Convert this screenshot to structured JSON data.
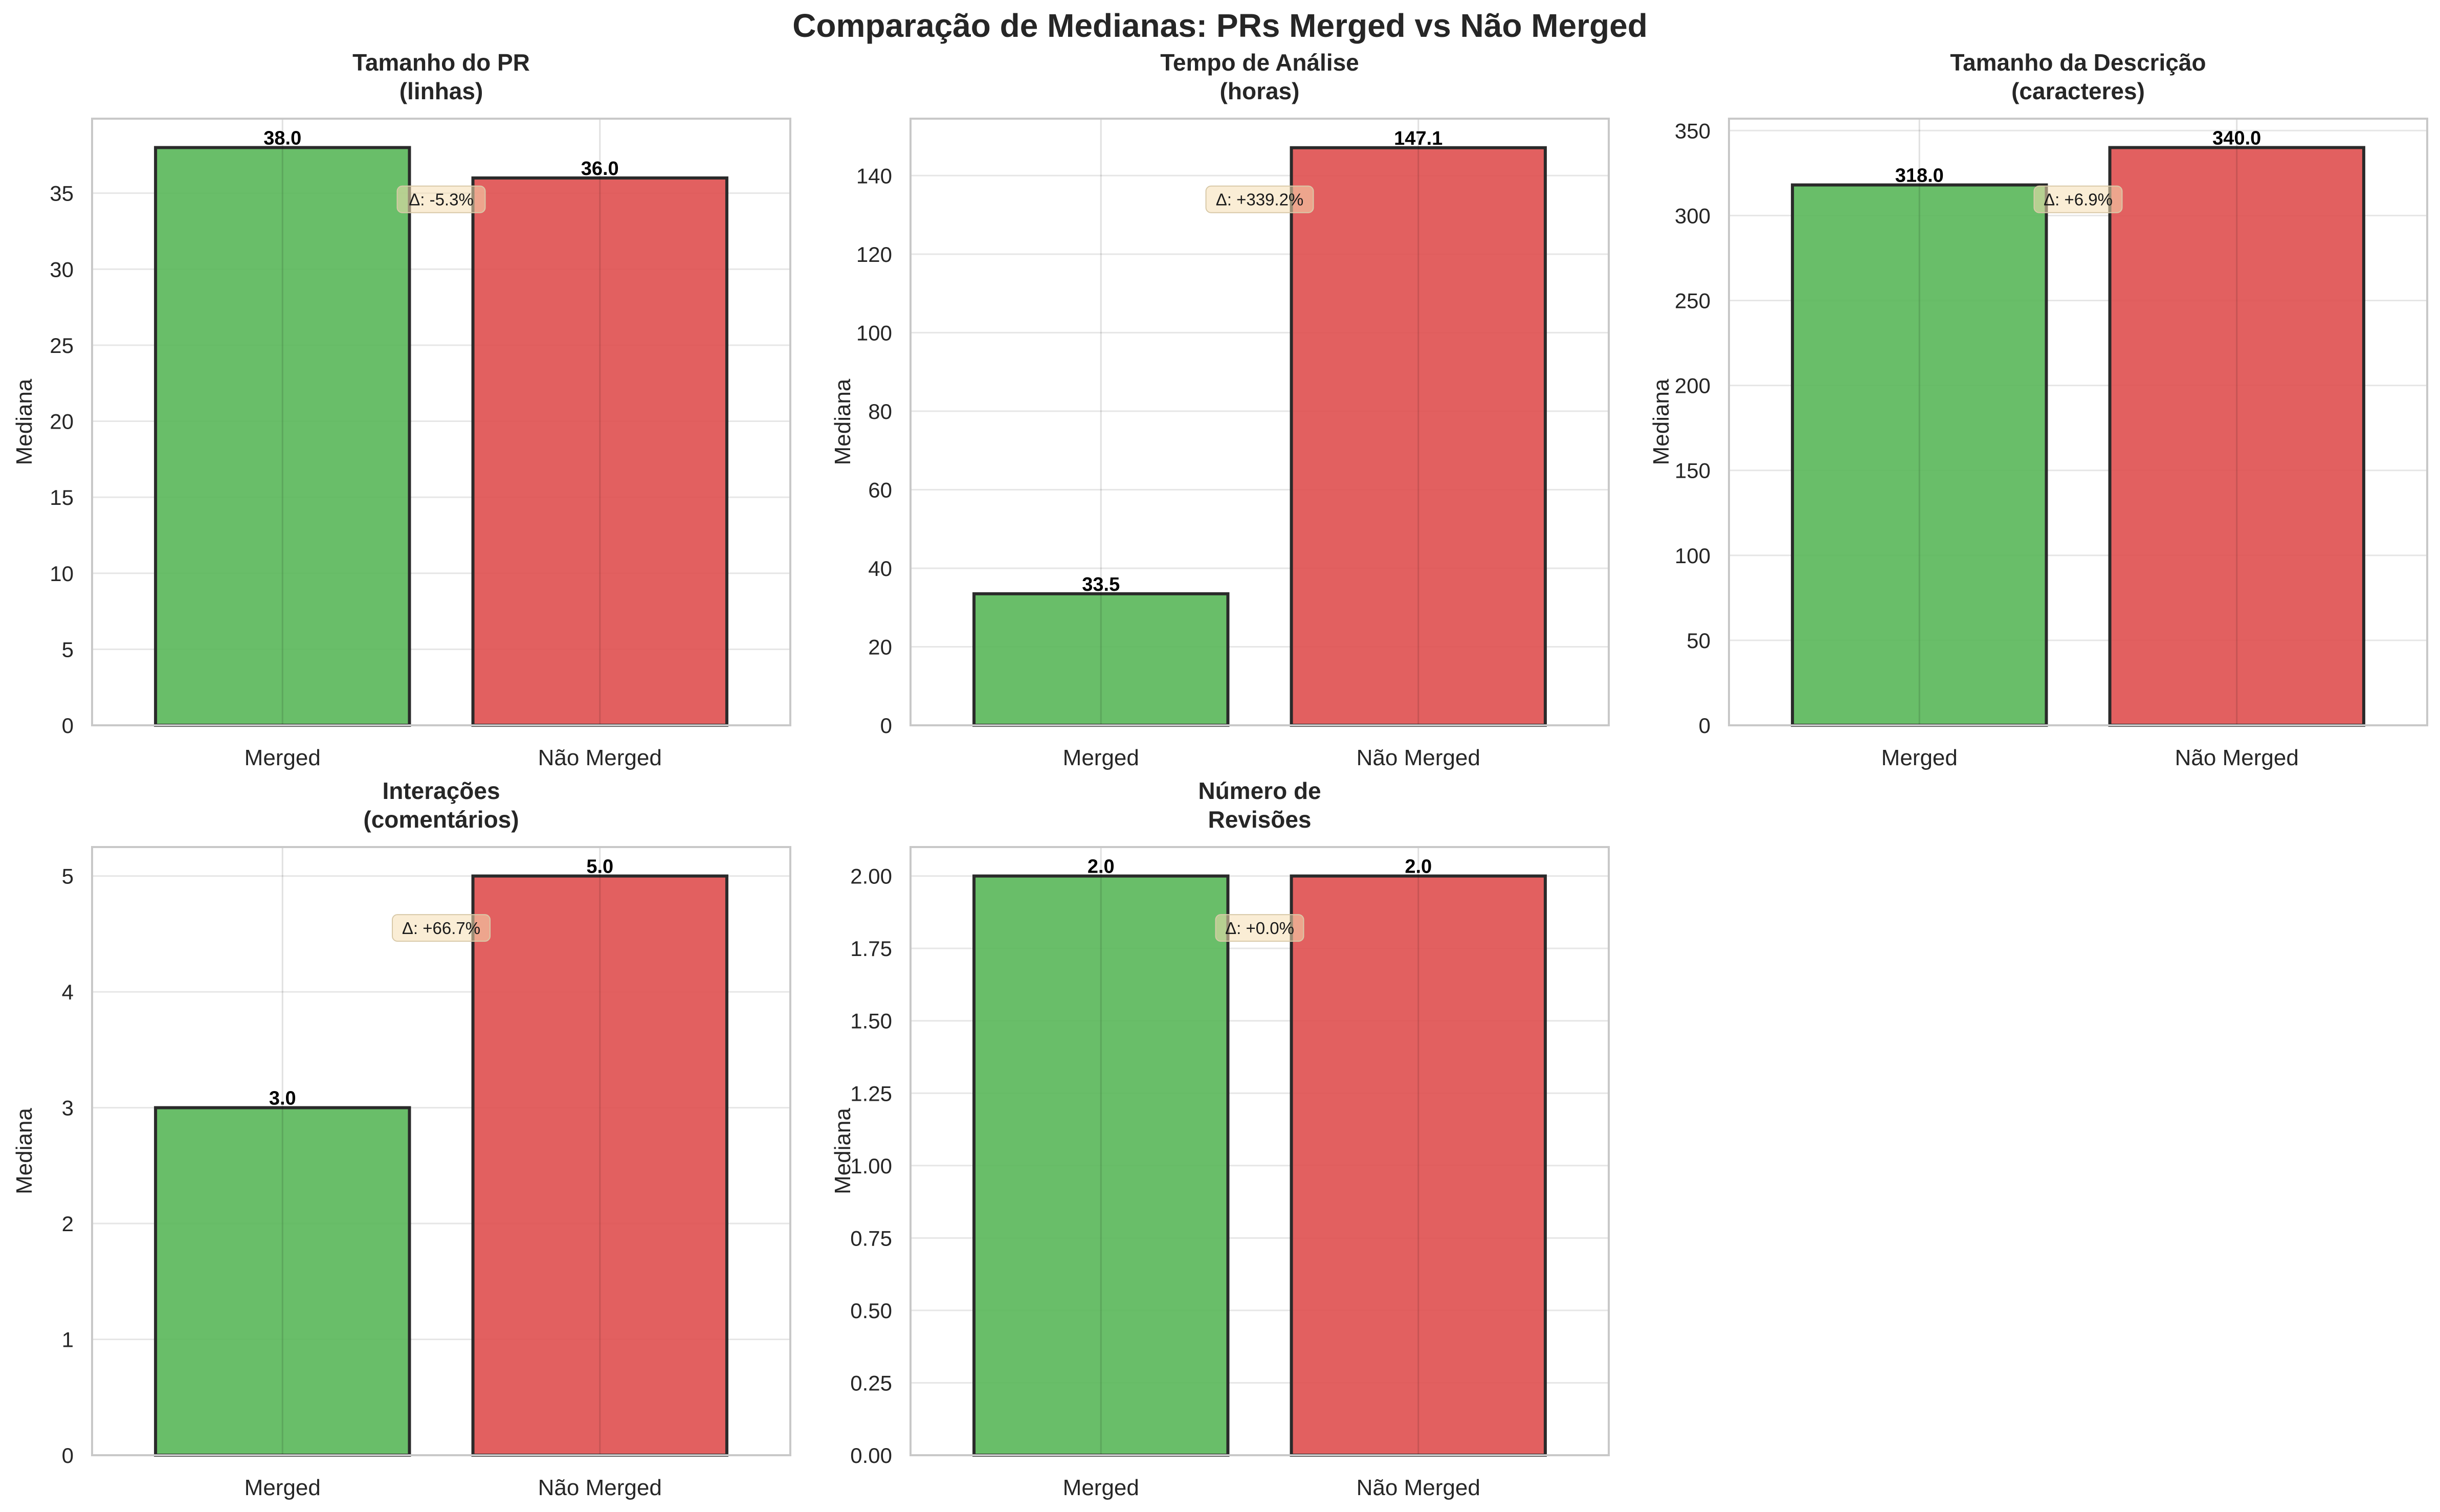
{
  "suptitle": "Comparação de Medianas: PRs Merged vs Não Merged",
  "colors": {
    "merged": "#5cb85c",
    "not_merged": "#e05252",
    "bar_edge": "#2a2a2a",
    "grid": "#e6e6e6",
    "spine": "#c8c8c8",
    "delta_box": "#f5deb3"
  },
  "chart_data": [
    {
      "type": "bar",
      "title": "Tamanho do PR\n(linhas)",
      "categories": [
        "Merged",
        "Não Merged"
      ],
      "values": [
        38.0,
        36.0
      ],
      "value_labels": [
        "38.0",
        "36.0"
      ],
      "delta_label": "Δ: -5.3%",
      "ylabel": "Mediana",
      "ylim": [
        0,
        39.9
      ],
      "yticks": [
        0,
        5,
        10,
        15,
        20,
        25,
        30,
        35
      ],
      "ytick_labels": [
        "0",
        "5",
        "10",
        "15",
        "20",
        "25",
        "30",
        "35"
      ],
      "grid": true
    },
    {
      "type": "bar",
      "title": "Tempo de Análise\n(horas)",
      "categories": [
        "Merged",
        "Não Merged"
      ],
      "values": [
        33.5,
        147.1
      ],
      "value_labels": [
        "33.5",
        "147.1"
      ],
      "delta_label": "Δ: +339.2%",
      "ylabel": "Mediana",
      "ylim": [
        0,
        154.5
      ],
      "yticks": [
        0,
        20,
        40,
        60,
        80,
        100,
        120,
        140
      ],
      "ytick_labels": [
        "0",
        "20",
        "40",
        "60",
        "80",
        "100",
        "120",
        "140"
      ],
      "grid": true
    },
    {
      "type": "bar",
      "title": "Tamanho da Descrição\n(caracteres)",
      "categories": [
        "Merged",
        "Não Merged"
      ],
      "values": [
        318.0,
        340.0
      ],
      "value_labels": [
        "318.0",
        "340.0"
      ],
      "delta_label": "Δ: +6.9%",
      "ylabel": "Mediana",
      "ylim": [
        0,
        357
      ],
      "yticks": [
        0,
        50,
        100,
        150,
        200,
        250,
        300,
        350
      ],
      "ytick_labels": [
        "0",
        "50",
        "100",
        "150",
        "200",
        "250",
        "300",
        "350"
      ],
      "grid": true
    },
    {
      "type": "bar",
      "title": "Interações\n(comentários)",
      "categories": [
        "Merged",
        "Não Merged"
      ],
      "values": [
        3.0,
        5.0
      ],
      "value_labels": [
        "3.0",
        "5.0"
      ],
      "delta_label": "Δ: +66.7%",
      "ylabel": "Mediana",
      "ylim": [
        0,
        5.25
      ],
      "yticks": [
        0,
        1,
        2,
        3,
        4,
        5
      ],
      "ytick_labels": [
        "0",
        "1",
        "2",
        "3",
        "4",
        "5"
      ],
      "grid": true
    },
    {
      "type": "bar",
      "title": "Número de\nRevisões",
      "categories": [
        "Merged",
        "Não Merged"
      ],
      "values": [
        2.0,
        2.0
      ],
      "value_labels": [
        "2.0",
        "2.0"
      ],
      "delta_label": "Δ: +0.0%",
      "ylabel": "Mediana",
      "ylim": [
        0,
        2.1
      ],
      "yticks": [
        0,
        0.25,
        0.5,
        0.75,
        1.0,
        1.25,
        1.5,
        1.75,
        2.0
      ],
      "ytick_labels": [
        "0.00",
        "0.25",
        "0.50",
        "0.75",
        "1.00",
        "1.25",
        "1.50",
        "1.75",
        "2.00"
      ],
      "grid": true
    }
  ]
}
